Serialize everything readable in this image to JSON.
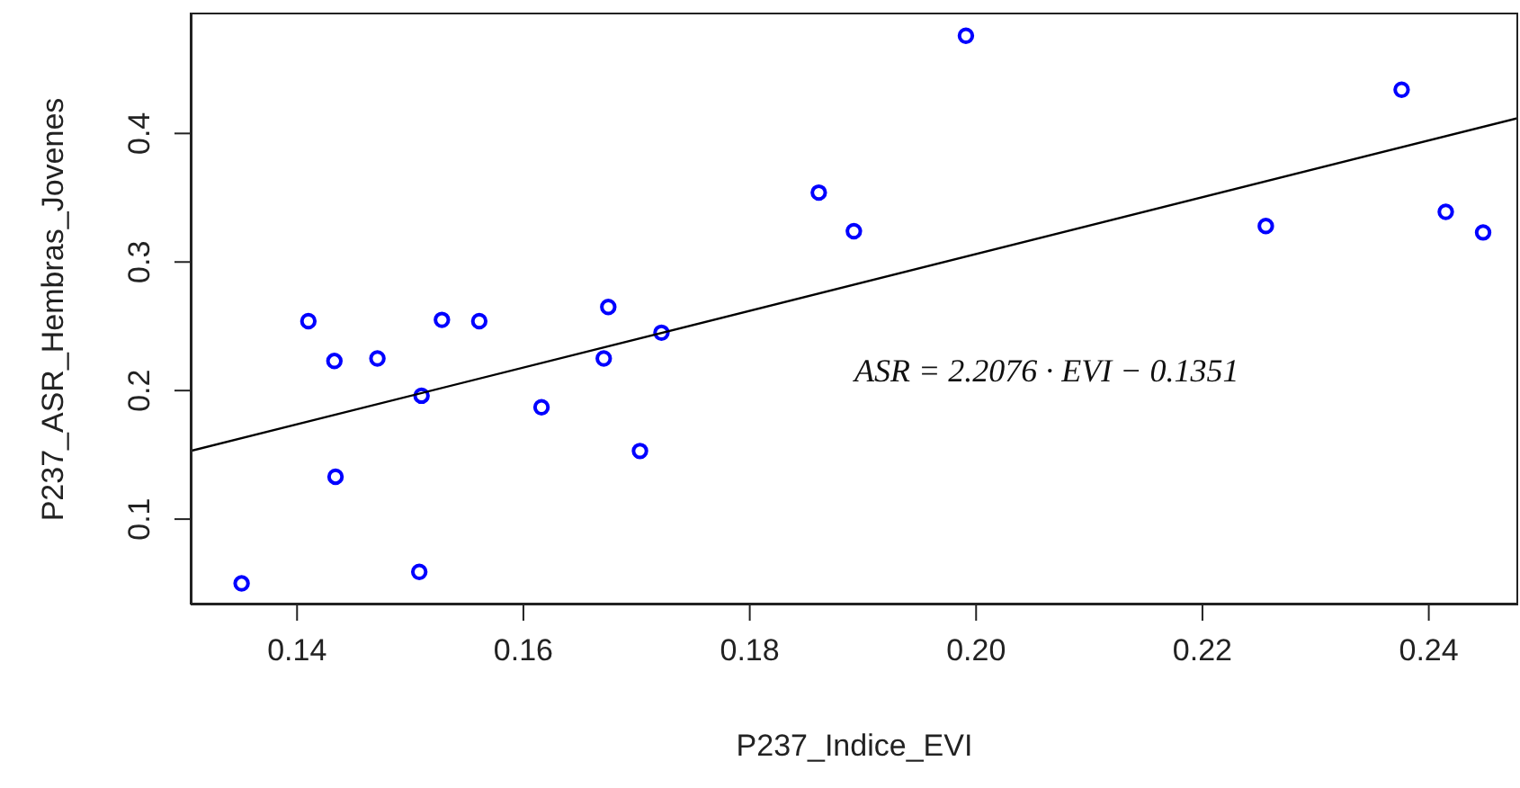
{
  "chart_data": {
    "type": "scatter",
    "xlabel": "P237_Indice_EVI",
    "ylabel": "P237_ASR_Hembras_Jovenes",
    "xlim": [
      0.1306,
      0.2479
    ],
    "ylim": [
      0.0336,
      0.494
    ],
    "xticks": [
      {
        "value": 0.14,
        "label": "0.14"
      },
      {
        "value": 0.16,
        "label": "0.16"
      },
      {
        "value": 0.18,
        "label": "0.18"
      },
      {
        "value": 0.2,
        "label": "0.20"
      },
      {
        "value": 0.22,
        "label": "0.22"
      },
      {
        "value": 0.24,
        "label": "0.24"
      }
    ],
    "yticks": [
      0.1,
      0.2,
      0.3,
      0.4
    ],
    "grid": false,
    "marker": "circle",
    "annotations": [
      "ASR = 2.2076 · EVI − 0.1351"
    ],
    "series": [
      {
        "type": "scatter",
        "color": "#0000ff",
        "x": [
          0.1351,
          0.141,
          0.1433,
          0.1434,
          0.1471,
          0.151,
          0.1508,
          0.1528,
          0.1561,
          0.1616,
          0.1671,
          0.1675,
          0.1703,
          0.1722,
          0.1861,
          0.1892,
          0.1991,
          0.2256,
          0.2376,
          0.2415,
          0.2448
        ],
        "values": [
          0.05,
          0.254,
          0.223,
          0.133,
          0.225,
          0.196,
          0.059,
          0.255,
          0.254,
          0.187,
          0.225,
          0.265,
          0.153,
          0.245,
          0.354,
          0.324,
          0.476,
          0.328,
          0.434,
          0.339,
          0.323
        ]
      },
      {
        "type": "line",
        "color": "#000000",
        "line_style": "solid",
        "marker": "none",
        "x": [
          0.1306,
          0.2479
        ],
        "values": [
          0.153,
          0.412
        ]
      }
    ]
  }
}
